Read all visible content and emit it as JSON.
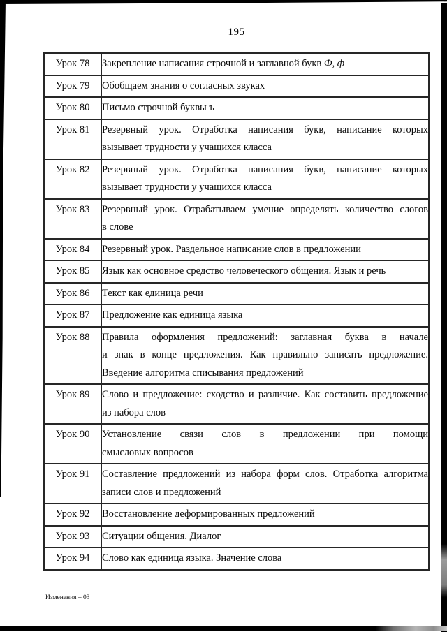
{
  "page": {
    "number": "195",
    "footer_note": "Изменения – 03",
    "ink_color": "#0a0a0a",
    "paper_color": "#ffffff"
  },
  "table": {
    "rows": [
      {
        "lesson": "Урок 78",
        "lines": [
          {
            "text": "Закрепление написания строчной и заглавной букв ",
            "italic": "Ф, ф"
          }
        ]
      },
      {
        "lesson": "Урок 79",
        "lines": [
          {
            "text": "Обобщаем знания о согласных звуках"
          }
        ]
      },
      {
        "lesson": "Урок 80",
        "lines": [
          {
            "text": "Письмо строчной буквы ъ"
          }
        ]
      },
      {
        "lesson": "Урок 81",
        "lines": [
          {
            "text": "Резервный урок. Отработка написания букв, написание которых"
          },
          {
            "text": "вызывает трудности у учащихся класса"
          }
        ]
      },
      {
        "lesson": "Урок 82",
        "lines": [
          {
            "text": "Резервный урок. Отработка написания букв, написание которых"
          },
          {
            "text": "вызывает трудности у учащихся класса"
          }
        ]
      },
      {
        "lesson": "Урок 83",
        "lines": [
          {
            "text": "Резервный урок. Отрабатываем умение определять количество слогов"
          },
          {
            "text": "в слове"
          }
        ]
      },
      {
        "lesson": "Урок 84",
        "lines": [
          {
            "text": "Резервный урок. Раздельное написание слов в предложении"
          }
        ]
      },
      {
        "lesson": "Урок 85",
        "lines": [
          {
            "text": "Язык как основное средство человеческого общения. Язык и речь"
          }
        ]
      },
      {
        "lesson": "Урок 86",
        "lines": [
          {
            "text": "Текст как единица речи"
          }
        ]
      },
      {
        "lesson": "Урок 87",
        "lines": [
          {
            "text": "Предложение как единица языка"
          }
        ]
      },
      {
        "lesson": "Урок 88",
        "lines": [
          {
            "text": "Правила оформления предложений: заглавная буква в начале"
          },
          {
            "text": "и знак в конце предложения. Как правильно записать предложение."
          },
          {
            "text": "Введение алгоритма списывания предложений"
          }
        ]
      },
      {
        "lesson": "Урок 89",
        "lines": [
          {
            "text": "Слово и предложение: сходство и различие. Как составить предложение"
          },
          {
            "text": "из набора слов"
          }
        ]
      },
      {
        "lesson": "Урок 90",
        "lines": [
          {
            "text": "Установление связи слов в предложении при помощи"
          },
          {
            "text": "смысловых вопросов"
          }
        ]
      },
      {
        "lesson": "Урок 91",
        "lines": [
          {
            "text": "Составление предложений из набора форм слов. Отработка алгоритма"
          },
          {
            "text": "записи слов и предложений"
          }
        ]
      },
      {
        "lesson": "Урок 92",
        "lines": [
          {
            "text": "Восстановление деформированных предложений"
          }
        ]
      },
      {
        "lesson": "Урок 93",
        "lines": [
          {
            "text": "Ситуации общения. Диалог"
          }
        ]
      },
      {
        "lesson": "Урок 94",
        "lines": [
          {
            "text": "Слово как единица языка. Значение слова"
          }
        ]
      }
    ]
  }
}
